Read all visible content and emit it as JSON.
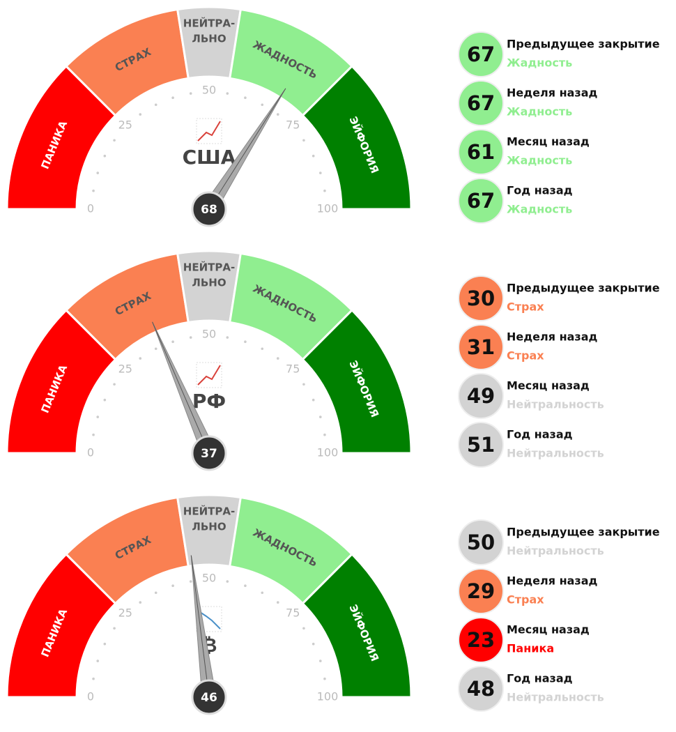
{
  "chart_data": [
    {
      "type": "gauge",
      "label": "США",
      "trend": "up",
      "value": 68,
      "lim": [
        0,
        100
      ],
      "ticks": [
        0,
        25,
        50,
        75,
        100
      ],
      "minor_ticks": [
        5,
        10,
        15,
        20,
        30,
        35,
        40,
        45,
        55,
        60,
        65,
        70,
        80,
        85,
        90,
        95
      ],
      "zones": [
        {
          "name": [
            "ПАНИКА"
          ],
          "from": 0,
          "to": 25,
          "color": "#ff0000",
          "label_color": "#ffffff"
        },
        {
          "name": [
            "СТРАХ"
          ],
          "from": 25,
          "to": 45,
          "color": "#fa8052",
          "label_color": "#555555"
        },
        {
          "name": [
            "НЕЙТРА-",
            "ЛЬНО"
          ],
          "from": 45,
          "to": 55,
          "color": "#d3d3d3",
          "label_color": "#555555"
        },
        {
          "name": [
            "ЖАДНОСТЬ"
          ],
          "from": 55,
          "to": 75,
          "color": "#90ee90",
          "label_color": "#555555"
        },
        {
          "name": [
            "ЭЙФОРИЯ"
          ],
          "from": 75,
          "to": 100,
          "color": "#008000",
          "label_color": "#ffffff"
        }
      ],
      "history": [
        {
          "label": "Предыдущее закрытие",
          "value": 67,
          "status": "Жадность",
          "color": "#90ee90"
        },
        {
          "label": "Неделя назад",
          "value": 67,
          "status": "Жадность",
          "color": "#90ee90"
        },
        {
          "label": "Месяц назад",
          "value": 61,
          "status": "Жадность",
          "color": "#90ee90"
        },
        {
          "label": "Год назад",
          "value": 67,
          "status": "Жадность",
          "color": "#90ee90"
        }
      ]
    },
    {
      "type": "gauge",
      "label": "РФ",
      "trend": "up",
      "value": 37,
      "lim": [
        0,
        100
      ],
      "ticks": [
        0,
        25,
        50,
        75,
        100
      ],
      "minor_ticks": [
        5,
        10,
        15,
        20,
        30,
        35,
        40,
        45,
        55,
        60,
        65,
        70,
        80,
        85,
        90,
        95
      ],
      "zones": [
        {
          "name": [
            "ПАНИКА"
          ],
          "from": 0,
          "to": 25,
          "color": "#ff0000",
          "label_color": "#ffffff"
        },
        {
          "name": [
            "СТРАХ"
          ],
          "from": 25,
          "to": 45,
          "color": "#fa8052",
          "label_color": "#555555"
        },
        {
          "name": [
            "НЕЙТРА-",
            "ЛЬНО"
          ],
          "from": 45,
          "to": 55,
          "color": "#d3d3d3",
          "label_color": "#555555"
        },
        {
          "name": [
            "ЖАДНОСТЬ"
          ],
          "from": 55,
          "to": 75,
          "color": "#90ee90",
          "label_color": "#555555"
        },
        {
          "name": [
            "ЭЙФОРИЯ"
          ],
          "from": 75,
          "to": 100,
          "color": "#008000",
          "label_color": "#ffffff"
        }
      ],
      "history": [
        {
          "label": "Предыдущее закрытие",
          "value": 30,
          "status": "Страх",
          "color": "#fa8052"
        },
        {
          "label": "Неделя назад",
          "value": 31,
          "status": "Страх",
          "color": "#fa8052"
        },
        {
          "label": "Месяц назад",
          "value": 49,
          "status": "Нейтральность",
          "color": "#d3d3d3"
        },
        {
          "label": "Год назад",
          "value": 51,
          "status": "Нейтральность",
          "color": "#d3d3d3"
        }
      ]
    },
    {
      "type": "gauge",
      "label": "₿",
      "trend": "down",
      "value": 46,
      "lim": [
        0,
        100
      ],
      "ticks": [
        0,
        25,
        50,
        75,
        100
      ],
      "minor_ticks": [
        5,
        10,
        15,
        20,
        30,
        35,
        40,
        45,
        55,
        60,
        65,
        70,
        80,
        85,
        90,
        95
      ],
      "zones": [
        {
          "name": [
            "ПАНИКА"
          ],
          "from": 0,
          "to": 25,
          "color": "#ff0000",
          "label_color": "#ffffff"
        },
        {
          "name": [
            "СТРАХ"
          ],
          "from": 25,
          "to": 45,
          "color": "#fa8052",
          "label_color": "#555555"
        },
        {
          "name": [
            "НЕЙТРА-",
            "ЛЬНО"
          ],
          "from": 45,
          "to": 55,
          "color": "#d3d3d3",
          "label_color": "#555555"
        },
        {
          "name": [
            "ЖАДНОСТЬ"
          ],
          "from": 55,
          "to": 75,
          "color": "#90ee90",
          "label_color": "#555555"
        },
        {
          "name": [
            "ЭЙФОРИЯ"
          ],
          "from": 75,
          "to": 100,
          "color": "#008000",
          "label_color": "#ffffff"
        }
      ],
      "history": [
        {
          "label": "Предыдущее закрытие",
          "value": 50,
          "status": "Нейтральность",
          "color": "#d3d3d3"
        },
        {
          "label": "Неделя назад",
          "value": 29,
          "status": "Страх",
          "color": "#fa8052"
        },
        {
          "label": "Месяц назад",
          "value": 23,
          "status": "Паника",
          "color": "#ff0000"
        },
        {
          "label": "Год назад",
          "value": 48,
          "status": "Нейтральность",
          "color": "#d3d3d3"
        }
      ]
    }
  ]
}
